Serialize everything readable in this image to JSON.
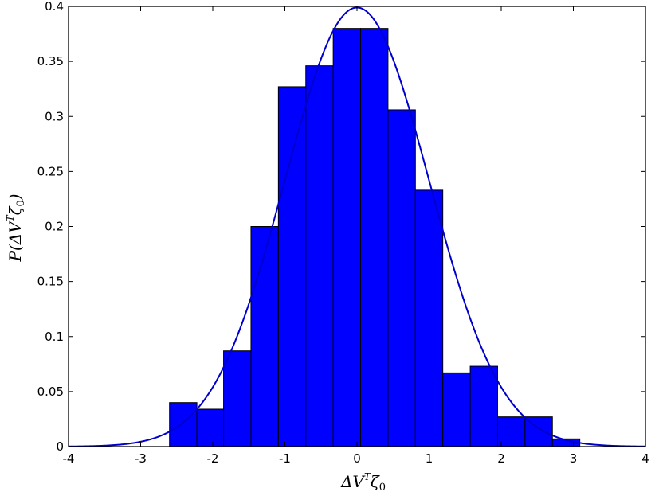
{
  "chart_data": {
    "type": "bar",
    "xlabel": "ΔV^Tζ_0",
    "ylabel": "P(ΔV^Tζ_0)",
    "xlim": [
      -4,
      4
    ],
    "ylim": [
      0,
      0.4
    ],
    "xticks": [
      "-4",
      "-3",
      "-2",
      "-1",
      "0",
      "1",
      "2",
      "3",
      "4"
    ],
    "yticks": [
      "0",
      "0.05",
      "0.1",
      "0.15",
      "0.2",
      "0.25",
      "0.3",
      "0.35",
      "0.4"
    ],
    "grid": false,
    "bar_color": "#0000ff",
    "curve_color": "#0000cc",
    "bins": [
      {
        "x0": -2.6,
        "x1": -2.22,
        "value": 0.04
      },
      {
        "x0": -2.22,
        "x1": -1.85,
        "value": 0.034
      },
      {
        "x0": -1.85,
        "x1": -1.47,
        "value": 0.087
      },
      {
        "x0": -1.47,
        "x1": -1.09,
        "value": 0.2
      },
      {
        "x0": -1.09,
        "x1": -0.71,
        "value": 0.327
      },
      {
        "x0": -0.71,
        "x1": -0.33,
        "value": 0.346
      },
      {
        "x0": -0.33,
        "x1": 0.05,
        "value": 0.38
      },
      {
        "x0": 0.05,
        "x1": 0.43,
        "value": 0.38
      },
      {
        "x0": 0.43,
        "x1": 0.81,
        "value": 0.306
      },
      {
        "x0": 0.81,
        "x1": 1.19,
        "value": 0.233
      },
      {
        "x0": 1.19,
        "x1": 1.57,
        "value": 0.067
      },
      {
        "x0": 1.57,
        "x1": 1.95,
        "value": 0.073
      },
      {
        "x0": 1.95,
        "x1": 2.33,
        "value": 0.027
      },
      {
        "x0": 2.33,
        "x1": 2.71,
        "value": 0.027
      },
      {
        "x0": 2.71,
        "x1": 3.09,
        "value": 0.007
      }
    ],
    "curve": {
      "type": "normal-pdf",
      "mean": 0,
      "std": 1
    }
  }
}
